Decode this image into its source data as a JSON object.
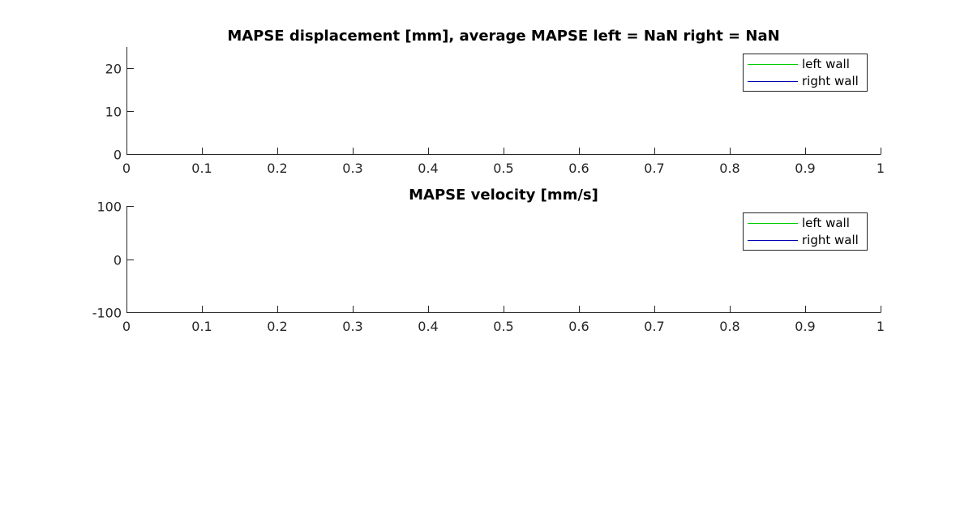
{
  "chart_data": [
    {
      "type": "line",
      "title": "MAPSE displacement [mm], average MAPSE left = NaN right = NaN",
      "xlabel": "",
      "ylabel": "",
      "xlim": [
        0,
        1
      ],
      "ylim": [
        0,
        25
      ],
      "xticks": [
        0,
        0.1,
        0.2,
        0.3,
        0.4,
        0.5,
        0.6,
        0.7,
        0.8,
        0.9,
        1
      ],
      "xtick_labels": [
        "0",
        "0.1",
        "0.2",
        "0.3",
        "0.4",
        "0.5",
        "0.6",
        "0.7",
        "0.8",
        "0.9",
        "1"
      ],
      "yticks": [
        0,
        10,
        20
      ],
      "ytick_labels": [
        "0",
        "10",
        "20"
      ],
      "grid": false,
      "legend_position": "top-right",
      "series": [
        {
          "name": "left wall",
          "color": "#00cc00",
          "x": [],
          "y": []
        },
        {
          "name": "right wall",
          "color": "#0000b3",
          "x": [],
          "y": []
        }
      ]
    },
    {
      "type": "line",
      "title": "MAPSE velocity [mm/s]",
      "xlabel": "",
      "ylabel": "",
      "xlim": [
        0,
        1
      ],
      "ylim": [
        -100,
        100
      ],
      "xticks": [
        0,
        0.1,
        0.2,
        0.3,
        0.4,
        0.5,
        0.6,
        0.7,
        0.8,
        0.9,
        1
      ],
      "xtick_labels": [
        "0",
        "0.1",
        "0.2",
        "0.3",
        "0.4",
        "0.5",
        "0.6",
        "0.7",
        "0.8",
        "0.9",
        "1"
      ],
      "yticks": [
        -100,
        0,
        100
      ],
      "ytick_labels": [
        "-100",
        "0",
        "100"
      ],
      "grid": false,
      "legend_position": "top-right",
      "series": [
        {
          "name": "left wall",
          "color": "#00cc00",
          "x": [],
          "y": []
        },
        {
          "name": "right wall",
          "color": "#0000b3",
          "x": [],
          "y": []
        }
      ]
    }
  ]
}
